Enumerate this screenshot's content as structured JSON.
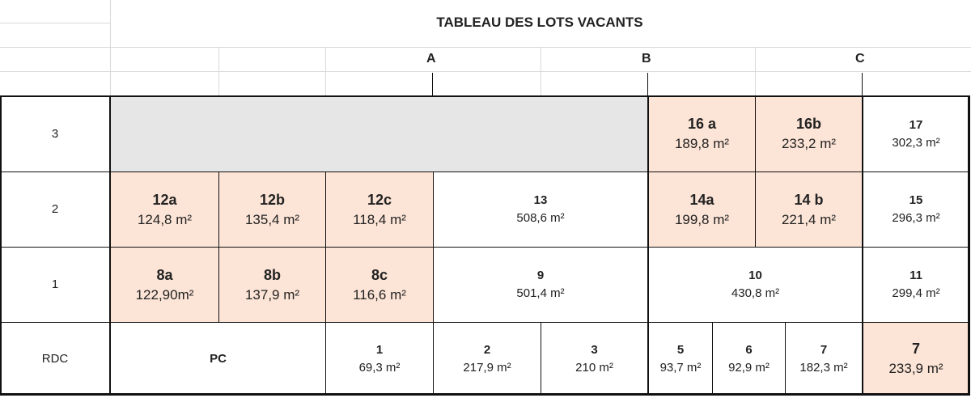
{
  "title": "TABLEAU DES LOTS VACANTS",
  "sections": [
    "A",
    "B",
    "C"
  ],
  "colors": {
    "vacant": "#fce4d6",
    "unavailable": "#e7e6e6"
  },
  "rows": [
    {
      "label": "3",
      "cells": [
        {
          "lot": "",
          "area": "",
          "state": "unavailable"
        },
        {
          "lot": "16 a",
          "area": "189,8 m²",
          "state": "vacant"
        },
        {
          "lot": "16b",
          "area": "233,2 m²",
          "state": "vacant"
        },
        {
          "lot": "17",
          "area": "302,3 m²",
          "state": "occupied"
        }
      ]
    },
    {
      "label": "2",
      "cells": [
        {
          "lot": "12a",
          "area": "124,8 m²",
          "state": "vacant"
        },
        {
          "lot": "12b",
          "area": "135,4 m²",
          "state": "vacant"
        },
        {
          "lot": "12c",
          "area": "118,4 m²",
          "state": "vacant"
        },
        {
          "lot": "13",
          "area": "508,6 m²",
          "state": "occupied"
        },
        {
          "lot": "14a",
          "area": "199,8 m²",
          "state": "vacant"
        },
        {
          "lot": "14 b",
          "area": "221,4 m²",
          "state": "vacant"
        },
        {
          "lot": "15",
          "area": "296,3 m²",
          "state": "occupied"
        }
      ]
    },
    {
      "label": "1",
      "cells": [
        {
          "lot": "8a",
          "area": "122,90m²",
          "state": "vacant"
        },
        {
          "lot": "8b",
          "area": "137,9 m²",
          "state": "vacant"
        },
        {
          "lot": "8c",
          "area": "116,6 m²",
          "state": "vacant"
        },
        {
          "lot": "9",
          "area": "501,4 m²",
          "state": "occupied"
        },
        {
          "lot": "10",
          "area": "430,8 m²",
          "state": "occupied"
        },
        {
          "lot": "11",
          "area": "299,4 m²",
          "state": "occupied"
        }
      ]
    },
    {
      "label": "RDC",
      "cells": [
        {
          "lot": "PC",
          "area": "",
          "state": "occupied"
        },
        {
          "lot": "1",
          "area": "69,3 m²",
          "state": "occupied"
        },
        {
          "lot": "2",
          "area": "217,9 m²",
          "state": "occupied"
        },
        {
          "lot": "3",
          "area": "210 m²",
          "state": "occupied"
        },
        {
          "lot": "5",
          "area": "93,7 m²",
          "state": "occupied"
        },
        {
          "lot": "6",
          "area": "92,9 m²",
          "state": "occupied"
        },
        {
          "lot": "7",
          "area": "182,3 m²",
          "state": "occupied"
        },
        {
          "lot": "7",
          "area": "233,9 m²",
          "state": "vacant"
        }
      ]
    }
  ]
}
